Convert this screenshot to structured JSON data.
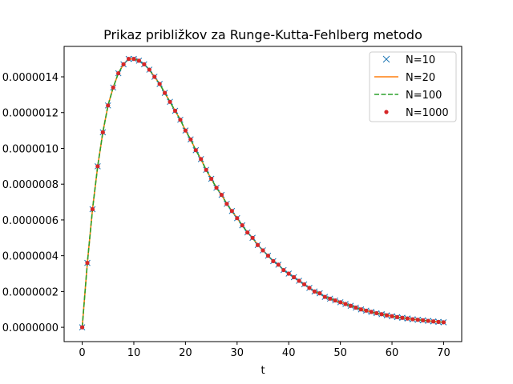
{
  "chart_data": {
    "type": "line",
    "title": "Prikaz približkov za Runge-Kutta-Fehlberg metodo",
    "xlabel": "t",
    "ylabel": "",
    "xlim": [
      -3.5,
      73.5
    ],
    "ylim": [
      -8e-08,
      1.57e-06
    ],
    "x_ticks": [
      0,
      10,
      20,
      30,
      40,
      50,
      60,
      70
    ],
    "x_tick_labels": [
      "0",
      "10",
      "20",
      "30",
      "40",
      "50",
      "60",
      "70"
    ],
    "y_ticks": [
      0,
      2e-07,
      4e-07,
      6e-07,
      8e-07,
      1e-06,
      1.2e-06,
      1.4e-06
    ],
    "y_tick_labels": [
      "0.0000000",
      "0.0000002",
      "0.0000004",
      "0.0000006",
      "0.0000008",
      "0.0000010",
      "0.0000012",
      "0.0000014"
    ],
    "grid": false,
    "legend_position": "top-right",
    "series": [
      {
        "name": "N=10",
        "color": "#1f77b4",
        "style": "x-markers"
      },
      {
        "name": "N=20",
        "color": "#ff7f0e",
        "style": "solid-line"
      },
      {
        "name": "N=100",
        "color": "#2ca02c",
        "style": "dashed-line"
      },
      {
        "name": "N=1000",
        "color": "#d62728",
        "style": "dot-markers"
      }
    ],
    "x": [
      0,
      1,
      2,
      3,
      4,
      5,
      6,
      7,
      8,
      9,
      10,
      11,
      12,
      13,
      14,
      15,
      16,
      17,
      18,
      19,
      20,
      21,
      22,
      23,
      24,
      25,
      26,
      27,
      28,
      29,
      30,
      31,
      32,
      33,
      34,
      35,
      36,
      37,
      38,
      39,
      40,
      41,
      42,
      43,
      44,
      45,
      46,
      47,
      48,
      49,
      50,
      51,
      52,
      53,
      54,
      55,
      56,
      57,
      58,
      59,
      60,
      61,
      62,
      63,
      64,
      65,
      66,
      67,
      68,
      69,
      70
    ],
    "y": [
      0.0,
      3.6e-07,
      6.6e-07,
      9e-07,
      1.09e-06,
      1.24e-06,
      1.34e-06,
      1.42e-06,
      1.47e-06,
      1.5e-06,
      1.5e-06,
      1.49e-06,
      1.47e-06,
      1.44e-06,
      1.4e-06,
      1.36e-06,
      1.31e-06,
      1.26e-06,
      1.21e-06,
      1.16e-06,
      1.1e-06,
      1.05e-06,
      9.9e-07,
      9.4e-07,
      8.8e-07,
      8.3e-07,
      7.8e-07,
      7.4e-07,
      6.9e-07,
      6.5e-07,
      6.1e-07,
      5.7e-07,
      5.3e-07,
      5e-07,
      4.6e-07,
      4.3e-07,
      4e-07,
      3.7e-07,
      3.5e-07,
      3.2e-07,
      3e-07,
      2.8e-07,
      2.6e-07,
      2.4e-07,
      2.2e-07,
      2e-07,
      1.9e-07,
      1.7e-07,
      1.6e-07,
      1.5e-07,
      1.4e-07,
      1.3e-07,
      1.2e-07,
      1.1e-07,
      1e-07,
      9.3e-08,
      8.6e-08,
      7.9e-08,
      7.3e-08,
      6.7e-08,
      6.2e-08,
      5.7e-08,
      5.3e-08,
      4.9e-08,
      4.5e-08,
      4.2e-08,
      3.9e-08,
      3.6e-08,
      3.3e-08,
      3e-08,
      2.8e-08
    ]
  }
}
